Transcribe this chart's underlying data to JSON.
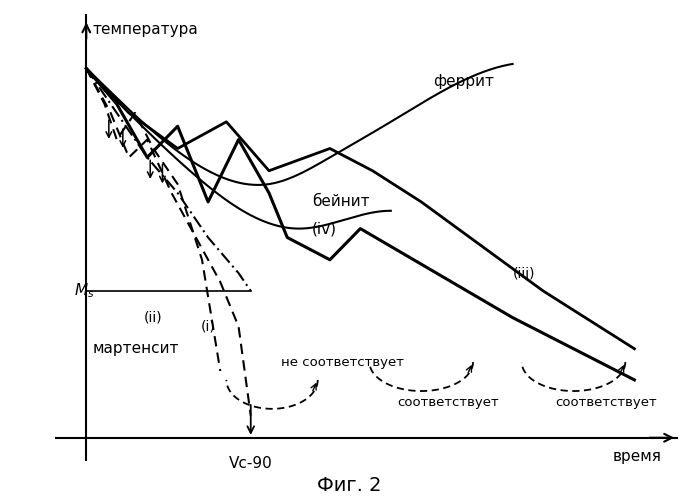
{
  "title": "Фиг. 2",
  "xlabel": "время",
  "ylabel": "температура",
  "Ms_label": "Ms",
  "Vc90_label": "Vc-90",
  "labels": {
    "ferrit": "феррит",
    "beinit": "бейнит\n(iv)",
    "martensite": "мартенсит",
    "i": "(i)",
    "ii": "(ii)",
    "iii": "(iii)",
    "not_match": "не соответствует",
    "match1": "соответствует",
    "match2": "соответствует"
  },
  "bg_color": "#ffffff",
  "line_color": "#000000"
}
